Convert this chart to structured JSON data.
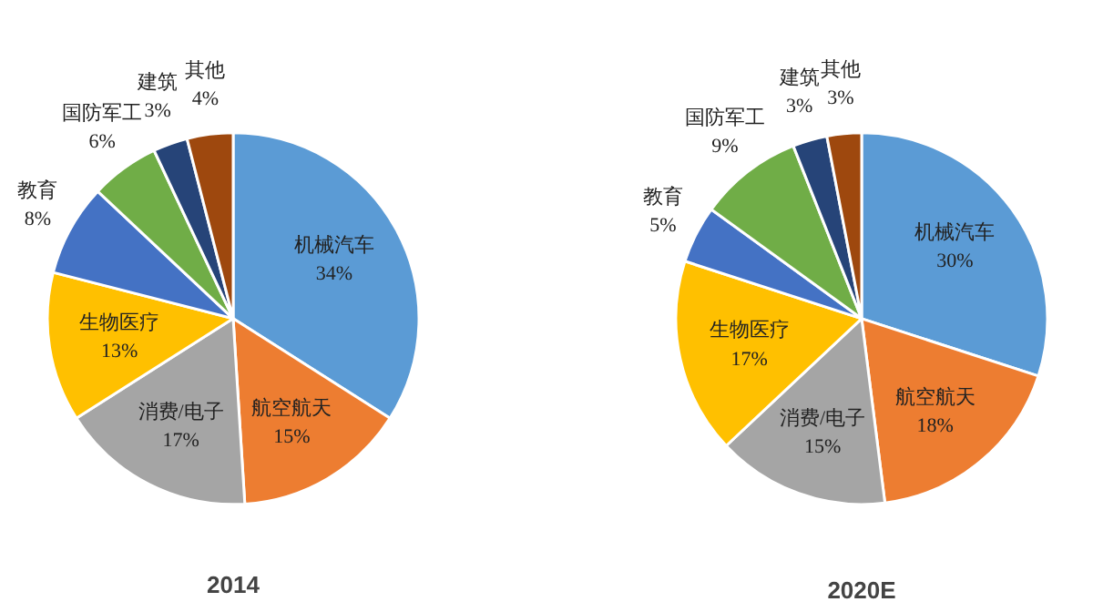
{
  "chart_data": [
    {
      "type": "pie",
      "title": "2014",
      "categories": [
        "机械汽车",
        "航空航天",
        "消费/电子",
        "生物医疗",
        "教育",
        "国防军工",
        "建筑",
        "其他"
      ],
      "values": [
        34,
        15,
        17,
        13,
        8,
        6,
        3,
        4
      ],
      "value_labels": [
        "34%",
        "15%",
        "17%",
        "13%",
        "8%",
        "6%",
        "3%",
        "4%"
      ],
      "colors": [
        "#5b9bd5",
        "#ed7d31",
        "#a5a5a5",
        "#ffc000",
        "#4472c4",
        "#70ad47",
        "#264478",
        "#9e480e"
      ]
    },
    {
      "type": "pie",
      "title": "2020E",
      "categories": [
        "机械汽车",
        "航空航天",
        "消费/电子",
        "生物医疗",
        "教育",
        "国防军工",
        "建筑",
        "其他"
      ],
      "values": [
        30,
        18,
        15,
        17,
        5,
        9,
        3,
        3
      ],
      "value_labels": [
        "30%",
        "18%",
        "15%",
        "17%",
        "5%",
        "9%",
        "3%",
        "3%"
      ],
      "colors": [
        "#5b9bd5",
        "#ed7d31",
        "#a5a5a5",
        "#ffc000",
        "#4472c4",
        "#70ad47",
        "#264478",
        "#9e480e"
      ]
    }
  ]
}
